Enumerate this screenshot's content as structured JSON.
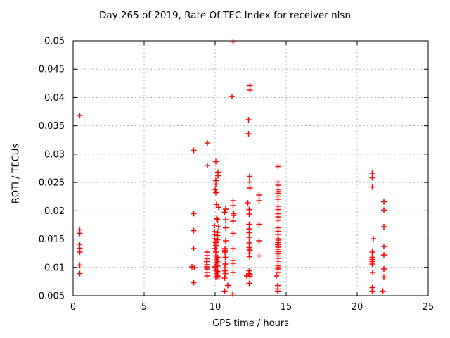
{
  "title": "Day 265 of 2019, Rate Of TEC Index for receiver nlsn",
  "colors": {
    "marker": "#ff0000",
    "axis": "#000000",
    "grid": "#a8a8a8",
    "background": "#ffffff"
  },
  "chart_data": {
    "type": "scatter",
    "title": "Day 265 of 2019, Rate Of TEC Index for receiver nlsn",
    "xlabel": "GPS time / hours",
    "ylabel": "ROTI / TECUs",
    "xlim": [
      0,
      25
    ],
    "ylim": [
      0.005,
      0.05
    ],
    "x_ticks": [
      0,
      5,
      10,
      15,
      20,
      25
    ],
    "x_tick_labels": [
      "0",
      "5",
      "10",
      "15",
      "20",
      "25"
    ],
    "y_ticks": [
      0.005,
      0.01,
      0.015,
      0.02,
      0.025,
      0.03,
      0.035,
      0.04,
      0.045,
      0.05
    ],
    "y_tick_labels": [
      "0.005",
      "0.01",
      "0.015",
      "0.02",
      "0.025",
      "0.03",
      "0.035",
      "0.04",
      "0.045",
      "0.05"
    ],
    "grid": true,
    "legend": "none",
    "marker": "plus",
    "marker_color": "#ff0000",
    "series": [
      {
        "name": "ROTI",
        "points": [
          [
            0.47,
            0.0368
          ],
          [
            0.47,
            0.0166
          ],
          [
            0.47,
            0.016
          ],
          [
            0.47,
            0.0141
          ],
          [
            0.47,
            0.0134
          ],
          [
            0.47,
            0.0127
          ],
          [
            0.47,
            0.0104
          ],
          [
            0.47,
            0.0089
          ],
          [
            8.48,
            0.0307
          ],
          [
            8.48,
            0.0195
          ],
          [
            8.48,
            0.0165
          ],
          [
            8.48,
            0.0133
          ],
          [
            8.37,
            0.0101
          ],
          [
            8.55,
            0.01
          ],
          [
            8.48,
            0.0073
          ],
          [
            9.46,
            0.032
          ],
          [
            9.46,
            0.028
          ],
          [
            9.42,
            0.0127
          ],
          [
            9.42,
            0.0121
          ],
          [
            9.42,
            0.0115
          ],
          [
            9.4,
            0.011
          ],
          [
            9.42,
            0.0105
          ],
          [
            9.4,
            0.0101
          ],
          [
            9.44,
            0.0097
          ],
          [
            9.42,
            0.0091
          ],
          [
            9.42,
            0.0085
          ],
          [
            10.05,
            0.0287
          ],
          [
            10.05,
            0.0253
          ],
          [
            10.05,
            0.0247
          ],
          [
            10.0,
            0.0238
          ],
          [
            10.05,
            0.0232
          ],
          [
            10.1,
            0.0211
          ],
          [
            10.1,
            0.0186
          ],
          [
            9.95,
            0.0174
          ],
          [
            9.95,
            0.0163
          ],
          [
            9.95,
            0.0158
          ],
          [
            9.95,
            0.0151
          ],
          [
            9.95,
            0.0145
          ],
          [
            10.05,
            0.0144
          ],
          [
            10.05,
            0.0139
          ],
          [
            10.0,
            0.0133
          ],
          [
            10.05,
            0.0127
          ],
          [
            10.05,
            0.012
          ],
          [
            10.1,
            0.0114
          ],
          [
            10.05,
            0.0108
          ],
          [
            10.0,
            0.0101
          ],
          [
            10.05,
            0.0095
          ],
          [
            10.1,
            0.0089
          ],
          [
            10.05,
            0.0083
          ],
          [
            10.2,
            0.0268
          ],
          [
            10.2,
            0.0262
          ],
          [
            10.25,
            0.0206
          ],
          [
            10.17,
            0.0184
          ],
          [
            10.25,
            0.0172
          ],
          [
            10.17,
            0.0162
          ],
          [
            10.17,
            0.0156
          ],
          [
            10.17,
            0.0149
          ],
          [
            10.17,
            0.0118
          ],
          [
            10.17,
            0.011
          ],
          [
            10.17,
            0.0102
          ],
          [
            10.17,
            0.0093
          ],
          [
            10.17,
            0.0085
          ],
          [
            10.28,
            0.0083
          ],
          [
            10.75,
            0.0203
          ],
          [
            10.67,
            0.0197
          ],
          [
            10.75,
            0.0184
          ],
          [
            10.75,
            0.017
          ],
          [
            10.75,
            0.0147
          ],
          [
            10.7,
            0.0133
          ],
          [
            10.7,
            0.013
          ],
          [
            10.7,
            0.0127
          ],
          [
            10.72,
            0.0118
          ],
          [
            10.72,
            0.0106
          ],
          [
            10.7,
            0.0099
          ],
          [
            10.7,
            0.0094
          ],
          [
            10.72,
            0.0089
          ],
          [
            10.67,
            0.0081
          ],
          [
            10.88,
            0.0068
          ],
          [
            10.67,
            0.0058
          ],
          [
            11.26,
            0.0498
          ],
          [
            11.2,
            0.0402
          ],
          [
            11.25,
            0.0218
          ],
          [
            11.25,
            0.0209
          ],
          [
            11.3,
            0.0195
          ],
          [
            11.3,
            0.0192
          ],
          [
            11.25,
            0.0182
          ],
          [
            11.25,
            0.016
          ],
          [
            11.25,
            0.0133
          ],
          [
            11.25,
            0.0112
          ],
          [
            11.25,
            0.0107
          ],
          [
            11.25,
            0.0091
          ],
          [
            11.24,
            0.0053
          ],
          [
            12.45,
            0.0421
          ],
          [
            12.45,
            0.0413
          ],
          [
            12.35,
            0.0361
          ],
          [
            12.35,
            0.0336
          ],
          [
            12.42,
            0.0261
          ],
          [
            12.42,
            0.0251
          ],
          [
            12.45,
            0.024
          ],
          [
            12.31,
            0.0214
          ],
          [
            12.4,
            0.0202
          ],
          [
            12.4,
            0.0194
          ],
          [
            12.4,
            0.0176
          ],
          [
            12.4,
            0.0168
          ],
          [
            12.4,
            0.0161
          ],
          [
            12.4,
            0.0153
          ],
          [
            12.4,
            0.0143
          ],
          [
            12.4,
            0.0135
          ],
          [
            12.42,
            0.0131
          ],
          [
            12.45,
            0.013
          ],
          [
            12.4,
            0.0125
          ],
          [
            12.42,
            0.0119
          ],
          [
            12.4,
            0.0094
          ],
          [
            12.38,
            0.0089
          ],
          [
            12.45,
            0.0088
          ],
          [
            12.23,
            0.0085
          ],
          [
            12.45,
            0.0084
          ],
          [
            12.4,
            0.0072
          ],
          [
            13.1,
            0.0228
          ],
          [
            13.1,
            0.0218
          ],
          [
            13.1,
            0.0176
          ],
          [
            13.1,
            0.0147
          ],
          [
            13.1,
            0.012
          ],
          [
            14.43,
            0.0278
          ],
          [
            14.43,
            0.0251
          ],
          [
            14.43,
            0.0245
          ],
          [
            14.43,
            0.0238
          ],
          [
            14.45,
            0.0234
          ],
          [
            14.43,
            0.0231
          ],
          [
            14.43,
            0.0226
          ],
          [
            14.43,
            0.022
          ],
          [
            14.43,
            0.0208
          ],
          [
            14.43,
            0.0202
          ],
          [
            14.43,
            0.0195
          ],
          [
            14.43,
            0.0189
          ],
          [
            14.43,
            0.0183
          ],
          [
            14.43,
            0.017
          ],
          [
            14.43,
            0.0164
          ],
          [
            14.43,
            0.0158
          ],
          [
            14.43,
            0.0151
          ],
          [
            14.45,
            0.0148
          ],
          [
            14.43,
            0.0144
          ],
          [
            14.4,
            0.014
          ],
          [
            14.46,
            0.014
          ],
          [
            14.43,
            0.0136
          ],
          [
            14.43,
            0.0132
          ],
          [
            14.43,
            0.0128
          ],
          [
            14.43,
            0.0124
          ],
          [
            14.43,
            0.012
          ],
          [
            14.43,
            0.0116
          ],
          [
            14.43,
            0.0111
          ],
          [
            14.43,
            0.0103
          ],
          [
            14.45,
            0.01
          ],
          [
            14.43,
            0.0097
          ],
          [
            14.43,
            0.0091
          ],
          [
            14.3,
            0.0085
          ],
          [
            14.4,
            0.0068
          ],
          [
            14.4,
            0.0062
          ],
          [
            14.4,
            0.0058
          ],
          [
            21.06,
            0.0266
          ],
          [
            21.06,
            0.0258
          ],
          [
            21.06,
            0.0242
          ],
          [
            21.89,
            0.0216
          ],
          [
            21.89,
            0.0201
          ],
          [
            21.89,
            0.0172
          ],
          [
            21.15,
            0.0151
          ],
          [
            21.89,
            0.0137
          ],
          [
            21.06,
            0.0127
          ],
          [
            21.89,
            0.0122
          ],
          [
            21.06,
            0.0118
          ],
          [
            21.06,
            0.0114
          ],
          [
            21.06,
            0.011
          ],
          [
            21.06,
            0.0106
          ],
          [
            21.89,
            0.0097
          ],
          [
            21.1,
            0.0091
          ],
          [
            21.89,
            0.0083
          ],
          [
            21.06,
            0.0064
          ],
          [
            21.06,
            0.0058
          ],
          [
            21.8,
            0.0058
          ]
        ]
      }
    ]
  }
}
